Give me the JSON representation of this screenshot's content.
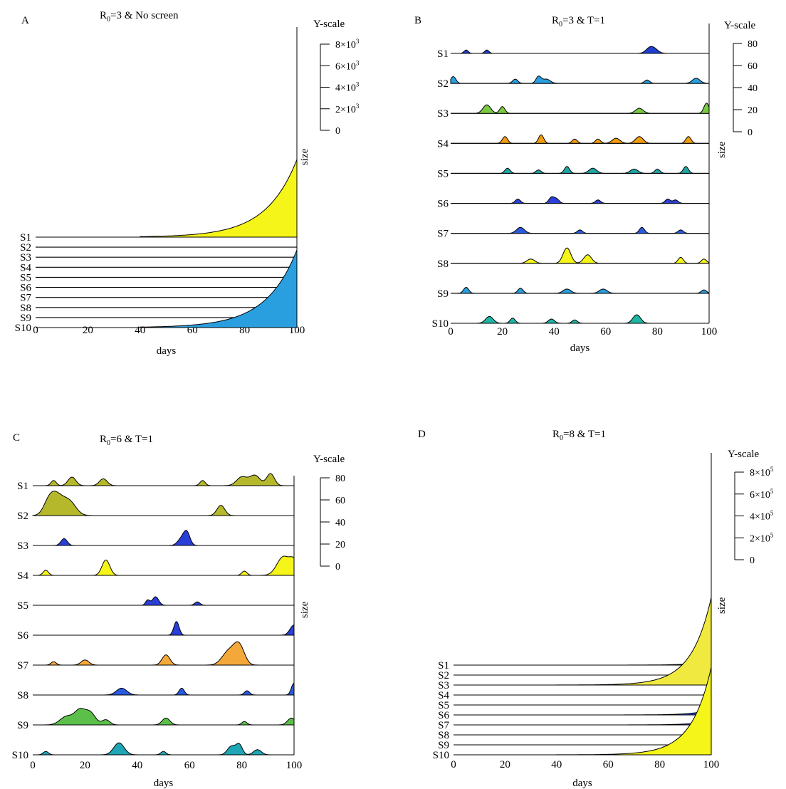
{
  "chart_data": [
    {
      "panel": "A",
      "type": "area",
      "title": "R0=3 & No screen",
      "title_main": "R",
      "title_sub": "0",
      "title_rest": "=3 & No screen",
      "xlabel": "days",
      "side_label": "size",
      "xticks": [
        0,
        20,
        40,
        60,
        80,
        100
      ],
      "xlim": [
        0,
        100
      ],
      "series_names": [
        "S1",
        "S2",
        "S3",
        "S4",
        "S5",
        "S6",
        "S7",
        "S8",
        "S9",
        "S10"
      ],
      "y_scale": {
        "title": "Y-scale",
        "ticks": [
          {
            "value": 8000,
            "label": "8×10",
            "sup": "3"
          },
          {
            "value": 6000,
            "label": "6×10",
            "sup": "3"
          },
          {
            "value": 4000,
            "label": "4×10",
            "sup": "3"
          },
          {
            "value": 2000,
            "label": "2×10",
            "sup": "3"
          },
          {
            "value": 0,
            "label": "0",
            "sup": ""
          }
        ]
      },
      "series": [
        {
          "name": "S1",
          "color": "#f5f51a",
          "kind": "exp",
          "start": 40,
          "rate": 0.085,
          "peak": 7200
        },
        {
          "name": "S10",
          "color": "#2a9fe0",
          "kind": "exp",
          "start": 40,
          "rate": 0.085,
          "peak": 7200
        }
      ]
    },
    {
      "panel": "B",
      "type": "area",
      "title": "R0=3 & T=1",
      "title_main": "R",
      "title_sub": "0",
      "title_rest": "=3 & T=1",
      "xlabel": "days",
      "side_label": "size",
      "xticks": [
        0,
        20,
        40,
        60,
        80,
        100
      ],
      "xlim": [
        0,
        100
      ],
      "series_names": [
        "S1",
        "S2",
        "S3",
        "S4",
        "S5",
        "S6",
        "S7",
        "S8",
        "S9",
        "S10"
      ],
      "y_scale": {
        "title": "Y-scale",
        "ticks": [
          {
            "value": 80,
            "label": "80",
            "sup": ""
          },
          {
            "value": 60,
            "label": "60",
            "sup": ""
          },
          {
            "value": 40,
            "label": "40",
            "sup": ""
          },
          {
            "value": 20,
            "label": "20",
            "sup": ""
          },
          {
            "value": 0,
            "label": "0",
            "sup": ""
          }
        ]
      },
      "series": [
        {
          "name": "S1",
          "color": "#1f3fd0",
          "bumps": [
            [
              6,
              4,
              0.8
            ],
            [
              14,
              4,
              0.8
            ],
            [
              77,
              6,
              1.5
            ],
            [
              79,
              4,
              1.5
            ]
          ]
        },
        {
          "name": "S2",
          "color": "#2a9fe0",
          "bumps": [
            [
              1,
              8,
              1
            ],
            [
              25,
              5,
              1
            ],
            [
              34,
              8,
              1
            ],
            [
              37,
              5,
              1.5
            ],
            [
              76,
              4,
              1
            ],
            [
              95,
              6,
              1.5
            ]
          ]
        },
        {
          "name": "S3",
          "color": "#7ac943",
          "bumps": [
            [
              14,
              10,
              1.5
            ],
            [
              20,
              8,
              1
            ],
            [
              73,
              6,
              1.5
            ],
            [
              99,
              12,
              1
            ]
          ]
        },
        {
          "name": "S4",
          "color": "#f39c12",
          "bumps": [
            [
              21,
              8,
              1
            ],
            [
              35,
              10,
              1
            ],
            [
              48,
              5,
              1
            ],
            [
              57,
              5,
              1
            ],
            [
              64,
              6,
              1.5
            ],
            [
              73,
              8,
              1.5
            ],
            [
              92,
              8,
              1
            ]
          ]
        },
        {
          "name": "S5",
          "color": "#1fa5a5",
          "bumps": [
            [
              22,
              6,
              1
            ],
            [
              34,
              4,
              1
            ],
            [
              45,
              8,
              1
            ],
            [
              55,
              6,
              1.5
            ],
            [
              71,
              5,
              1.5
            ],
            [
              80,
              5,
              1
            ],
            [
              91,
              8,
              1
            ]
          ]
        },
        {
          "name": "S6",
          "color": "#2a3fd8",
          "bumps": [
            [
              26,
              5,
              1
            ],
            [
              39,
              7,
              1
            ],
            [
              41,
              5,
              1
            ],
            [
              57,
              4,
              1
            ],
            [
              84,
              5,
              1
            ],
            [
              87,
              4,
              1
            ]
          ]
        },
        {
          "name": "S7",
          "color": "#2a5ae0",
          "bumps": [
            [
              27,
              7,
              1.5
            ],
            [
              50,
              4,
              1
            ],
            [
              74,
              7,
              1
            ],
            [
              89,
              4,
              1
            ]
          ]
        },
        {
          "name": "S8",
          "color": "#f5f51a",
          "bumps": [
            [
              31,
              5,
              1.5
            ],
            [
              45,
              18,
              1.5
            ],
            [
              53,
              10,
              1.5
            ],
            [
              89,
              7,
              1
            ],
            [
              98,
              5,
              1
            ]
          ]
        },
        {
          "name": "S9",
          "color": "#2a9fe0",
          "bumps": [
            [
              6,
              7,
              1
            ],
            [
              27,
              6,
              1
            ],
            [
              45,
              5,
              1.5
            ],
            [
              59,
              5,
              1.5
            ],
            [
              98,
              4,
              1
            ]
          ]
        },
        {
          "name": "S10",
          "color": "#1fb5a5",
          "bumps": [
            [
              15,
              8,
              1.5
            ],
            [
              24,
              6,
              1
            ],
            [
              39,
              5,
              1.2
            ],
            [
              48,
              4,
              1
            ],
            [
              72,
              10,
              1.5
            ]
          ]
        }
      ]
    },
    {
      "panel": "C",
      "type": "area",
      "title": "R0=6 & T=1",
      "title_main": "R",
      "title_sub": "0",
      "title_rest": "=6 & T=1",
      "xlabel": "days",
      "side_label": "size",
      "xticks": [
        0,
        20,
        40,
        60,
        80,
        100
      ],
      "xlim": [
        0,
        100
      ],
      "series_names": [
        "S1",
        "S2",
        "S3",
        "S4",
        "S5",
        "S6",
        "S7",
        "S8",
        "S9",
        "S10"
      ],
      "y_scale": {
        "title": "Y-scale",
        "ticks": [
          {
            "value": 80,
            "label": "80",
            "sup": ""
          },
          {
            "value": 60,
            "label": "60",
            "sup": ""
          },
          {
            "value": 40,
            "label": "40",
            "sup": ""
          },
          {
            "value": 20,
            "label": "20",
            "sup": ""
          },
          {
            "value": 0,
            "label": "0",
            "sup": ""
          }
        ]
      },
      "series": [
        {
          "name": "S1",
          "color": "#b5b82a",
          "bumps": [
            [
              8,
              6,
              1
            ],
            [
              15,
              10,
              1.5
            ],
            [
              27,
              8,
              1.5
            ],
            [
              65,
              6,
              1
            ],
            [
              80,
              10,
              2
            ],
            [
              85,
              12,
              2
            ],
            [
              91,
              14,
              1.5
            ]
          ]
        },
        {
          "name": "S2",
          "color": "#b5b82a",
          "bumps": [
            [
              6,
              12,
              2
            ],
            [
              9,
              22,
              2.5
            ],
            [
              14,
              16,
              2.5
            ],
            [
              72,
              12,
              1.5
            ]
          ]
        },
        {
          "name": "S3",
          "color": "#2a3fd8",
          "bumps": [
            [
              12,
              8,
              1.2
            ],
            [
              57,
              8,
              1.5
            ],
            [
              59,
              14,
              1.2
            ]
          ]
        },
        {
          "name": "S4",
          "color": "#f5f51a",
          "bumps": [
            [
              5,
              6,
              1
            ],
            [
              28,
              18,
              1.5
            ],
            [
              81,
              5,
              1
            ],
            [
              96,
              22,
              2.5
            ],
            [
              100,
              14,
              1.5
            ]
          ]
        },
        {
          "name": "S5",
          "color": "#2a3fd8",
          "bumps": [
            [
              44,
              6,
              0.8
            ],
            [
              47,
              10,
              1.2
            ],
            [
              63,
              4,
              1
            ]
          ]
        },
        {
          "name": "S6",
          "color": "#2a3fd8",
          "bumps": [
            [
              55,
              16,
              1
            ],
            [
              100,
              12,
              1.5
            ]
          ]
        },
        {
          "name": "S7",
          "color": "#f5a83a",
          "bumps": [
            [
              8,
              4,
              1
            ],
            [
              20,
              6,
              1.5
            ],
            [
              51,
              12,
              1.5
            ],
            [
              75,
              16,
              2.5
            ],
            [
              79,
              22,
              2
            ]
          ]
        },
        {
          "name": "S8",
          "color": "#2a5ae0",
          "bumps": [
            [
              34,
              8,
              2
            ],
            [
              57,
              8,
              1
            ],
            [
              82,
              5,
              1
            ],
            [
              100,
              14,
              1
            ]
          ]
        },
        {
          "name": "S9",
          "color": "#5bbf4a",
          "bumps": [
            [
              13,
              10,
              2.5
            ],
            [
              18,
              16,
              2
            ],
            [
              22,
              14,
              2
            ],
            [
              28,
              6,
              1.5
            ],
            [
              51,
              8,
              1.5
            ],
            [
              81,
              4,
              1
            ],
            [
              99,
              8,
              1.5
            ]
          ]
        },
        {
          "name": "S10",
          "color": "#1fa5b5",
          "bumps": [
            [
              5,
              4,
              1
            ],
            [
              33,
              14,
              2
            ],
            [
              50,
              4,
              1
            ],
            [
              76,
              10,
              1.5
            ],
            [
              79,
              12,
              1.2
            ],
            [
              86,
              6,
              1.5
            ]
          ]
        }
      ]
    },
    {
      "panel": "D",
      "type": "area",
      "title": "R0=8 & T=1",
      "title_main": "R",
      "title_sub": "0",
      "title_rest": "=8 & T=1",
      "xlabel": "days",
      "side_label": "size",
      "xticks": [
        0,
        20,
        40,
        60,
        80,
        100
      ],
      "xlim": [
        0,
        100
      ],
      "series_names": [
        "S1",
        "S2",
        "S3",
        "S4",
        "S5",
        "S6",
        "S7",
        "S8",
        "S9",
        "S10"
      ],
      "y_scale": {
        "title": "Y-scale",
        "ticks": [
          {
            "value": 800000,
            "label": "8×10",
            "sup": "5"
          },
          {
            "value": 600000,
            "label": "6×10",
            "sup": "5"
          },
          {
            "value": 400000,
            "label": "4×10",
            "sup": "5"
          },
          {
            "value": 200000,
            "label": "2×10",
            "sup": "5"
          },
          {
            "value": 0,
            "label": "0",
            "sup": ""
          }
        ]
      },
      "series": [
        {
          "name": "S1",
          "color": "#2a3fd8",
          "kind": "exp",
          "start": 60,
          "rate": 0.15,
          "peak": 40000
        },
        {
          "name": "S3",
          "color": "#f0ea40",
          "kind": "exp",
          "start": 40,
          "rate": 0.13,
          "peak": 800000
        },
        {
          "name": "S6",
          "color": "#2a4ae0",
          "kind": "exp",
          "start": 60,
          "rate": 0.15,
          "peak": 50000
        },
        {
          "name": "S7",
          "color": "#2a3fd8",
          "kind": "exp",
          "start": 60,
          "rate": 0.15,
          "peak": 40000
        },
        {
          "name": "S10",
          "color": "#f5f51a",
          "kind": "exp",
          "start": 40,
          "rate": 0.13,
          "peak": 800000
        }
      ]
    }
  ]
}
